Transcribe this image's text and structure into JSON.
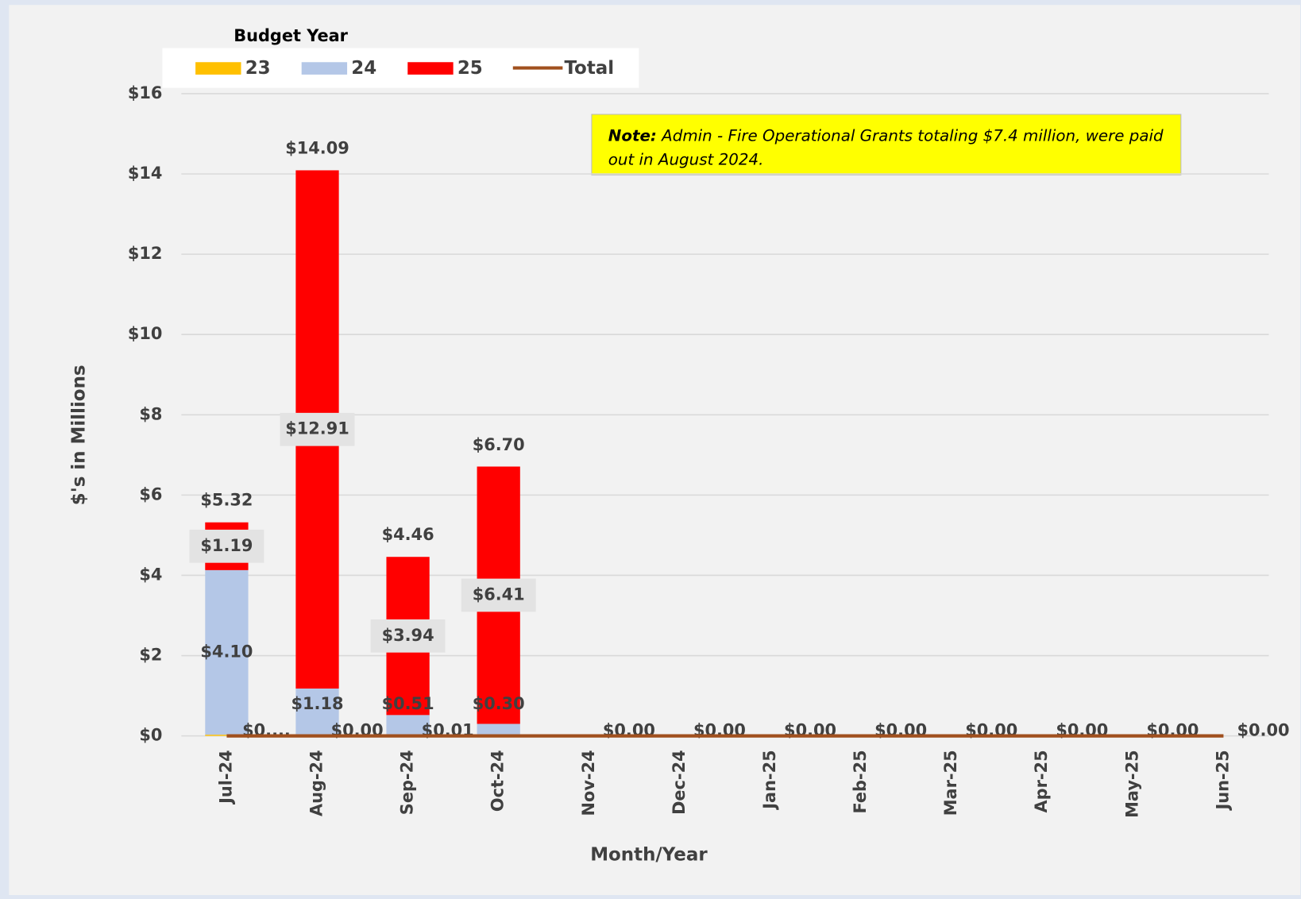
{
  "chart_data": {
    "type": "bar",
    "legend_title": "Budget Year",
    "x_label": "Month/Year",
    "y_label": "$'s in Millions",
    "note": {
      "label": "Note:",
      "text": "Admin - Fire Operational Grants totaling $7.4 million, were paid out in August 2024."
    },
    "categories": [
      "Jul-24",
      "Aug-24",
      "Sep-24",
      "Oct-24",
      "Nov-24",
      "Dec-24",
      "Jan-25",
      "Feb-25",
      "Mar-25",
      "Apr-25",
      "May-25",
      "Jun-25"
    ],
    "series": [
      {
        "name": "23",
        "color": "#ffc000",
        "values": [
          0.03,
          0,
          0.01,
          0,
          0,
          0,
          0,
          0,
          0,
          0,
          0,
          0
        ],
        "value_labels": [
          "$0....",
          "$0.00",
          "$0.01",
          null,
          "$0.00",
          "$0.00",
          "$0.00",
          "$0.00",
          "$0.00",
          "$0.00",
          "$0.00",
          "$0.00"
        ]
      },
      {
        "name": "24",
        "color": "#b4c7e7",
        "values": [
          4.1,
          1.18,
          0.51,
          0.3,
          null,
          null,
          null,
          null,
          null,
          null,
          null,
          null
        ],
        "value_labels": [
          "$4.10",
          "$1.18",
          "$0.51",
          "$0.30",
          null,
          null,
          null,
          null,
          null,
          null,
          null,
          null
        ]
      },
      {
        "name": "25",
        "color": "#ff0000",
        "values": [
          1.19,
          12.91,
          3.94,
          6.41,
          null,
          null,
          null,
          null,
          null,
          null,
          null,
          null
        ],
        "value_labels": [
          "$1.19",
          "$12.91",
          "$3.94",
          "$6.41",
          null,
          null,
          null,
          null,
          null,
          null,
          null,
          null
        ]
      },
      {
        "name": "Total",
        "color": "#a0501e",
        "kind": "line",
        "values": [
          0,
          0,
          0,
          0,
          0,
          0,
          0,
          0,
          0,
          0,
          0,
          0
        ]
      }
    ],
    "totals": {
      "values": [
        5.32,
        14.09,
        4.46,
        6.7
      ],
      "value_labels": [
        "$5.32",
        "$14.09",
        "$4.46",
        "$6.70"
      ]
    },
    "ylim": [
      0,
      16
    ],
    "yticks": [
      {
        "value": 0,
        "label": "$0"
      },
      {
        "value": 2,
        "label": "$2"
      },
      {
        "value": 4,
        "label": "$4"
      },
      {
        "value": 6,
        "label": "$6"
      },
      {
        "value": 8,
        "label": "$8"
      },
      {
        "value": 10,
        "label": "$10"
      },
      {
        "value": 12,
        "label": "$12"
      },
      {
        "value": 14,
        "label": "$14"
      },
      {
        "value": 16,
        "label": "$16"
      }
    ],
    "grid": true
  }
}
